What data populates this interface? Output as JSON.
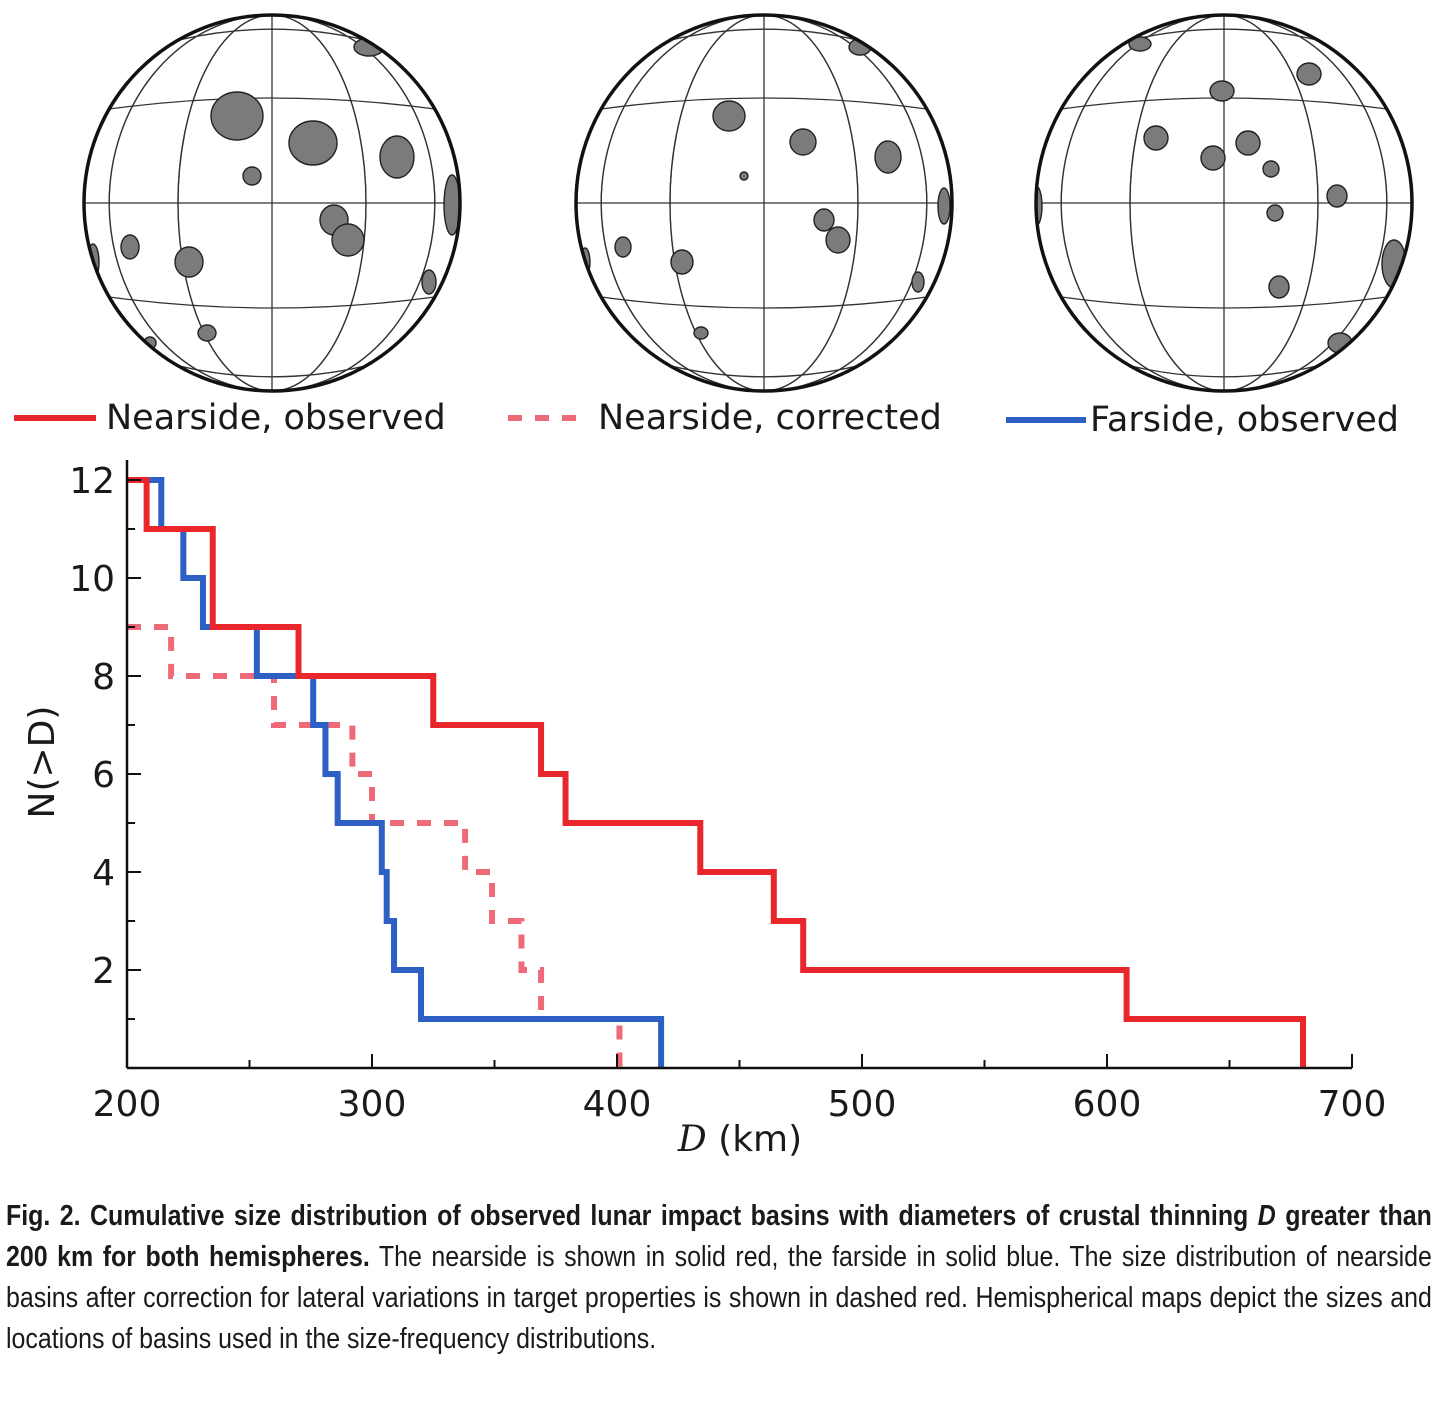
{
  "legend": [
    {
      "label": "Nearside, observed",
      "color": "#e8262b",
      "style": "solid"
    },
    {
      "label": "Nearside, corrected",
      "color": "#ee6a78",
      "style": "dashed"
    },
    {
      "label": "Farside, observed",
      "color": "#2e5fc4",
      "style": "solid"
    }
  ],
  "globes": [
    {
      "name": "nearside-observed"
    },
    {
      "name": "nearside-corrected"
    },
    {
      "name": "farside-observed"
    }
  ],
  "chart_data": {
    "type": "line",
    "step": true,
    "xlabel_var": "D",
    "xlabel_unit": "(km)",
    "ylabel": "N(>D)",
    "xlim": [
      200,
      700
    ],
    "ylim": [
      0,
      12.3
    ],
    "x_ticks": [
      200,
      300,
      400,
      500,
      600,
      700
    ],
    "y_ticks": [
      2,
      4,
      6,
      8,
      10,
      12
    ],
    "grid": false,
    "legend_position": "top",
    "series": [
      {
        "name": "Nearside, observed",
        "color": "#e8262b",
        "style": "solid",
        "x": [
          200,
          208,
          208,
          235,
          235,
          270,
          270,
          325,
          325,
          369,
          369,
          379,
          379,
          434,
          434,
          464,
          464,
          476,
          476,
          608,
          608,
          680,
          680
        ],
        "y": [
          12,
          12,
          11,
          11,
          9,
          9,
          8,
          8,
          7,
          7,
          6,
          6,
          5,
          5,
          4,
          4,
          3,
          3,
          2,
          2,
          1,
          1,
          0
        ]
      },
      {
        "name": "Nearside, corrected",
        "color": "#ee6a78",
        "style": "dashed",
        "x": [
          200,
          218,
          218,
          260,
          260,
          292,
          292,
          300,
          300,
          338,
          338,
          349,
          349,
          361,
          361,
          369,
          369,
          401,
          401
        ],
        "y": [
          9,
          9,
          8,
          8,
          7,
          7,
          6,
          6,
          5,
          5,
          4,
          4,
          3,
          3,
          2,
          2,
          1,
          1,
          0
        ]
      },
      {
        "name": "Farside, observed",
        "color": "#2e5fc4",
        "style": "solid",
        "x": [
          200,
          214,
          214,
          223,
          223,
          231,
          231,
          253,
          253,
          276,
          276,
          281,
          281,
          286,
          286,
          304,
          304,
          306,
          306,
          309,
          309,
          320,
          320,
          418,
          418
        ],
        "y": [
          12,
          12,
          11,
          11,
          10,
          10,
          9,
          9,
          8,
          8,
          7,
          7,
          6,
          6,
          5,
          5,
          4,
          4,
          3,
          3,
          2,
          2,
          1,
          1,
          0
        ]
      }
    ]
  },
  "caption": {
    "bold": "Fig. 2. Cumulative size distribution of observed lunar impact basins with diameters of crustal thinning ",
    "bold_italic": "D",
    "bold_rest": " greater than 200 km for both hemispheres.",
    "text": " The nearside is shown in solid red, the farside in solid blue. The size distribution of nearside basins after correction for lateral variations in target properties is shown in dashed red. Hemispherical maps depict the sizes and locations of basins used in the size-frequency distributions."
  }
}
